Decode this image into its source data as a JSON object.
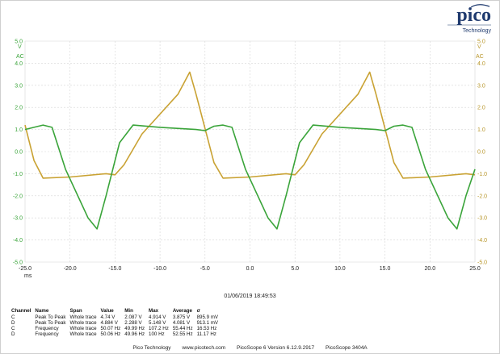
{
  "logo": {
    "wordmark": "pico",
    "sub": "Technology"
  },
  "left_axis": {
    "units": [
      "V",
      "AC"
    ],
    "ticks": [
      "5.0",
      "4.0",
      "3.0",
      "2.0",
      "1.0",
      "0.0",
      "-1.0",
      "-2.0",
      "-3.0",
      "-4.0",
      "-5.0"
    ]
  },
  "right_axis": {
    "units": [
      "V",
      "AC"
    ],
    "ticks": [
      "5.0",
      "4.0",
      "3.0",
      "2.0",
      "1.0",
      "0.0",
      "-1.0",
      "-2.0",
      "-3.0",
      "-4.0",
      "-5.0"
    ]
  },
  "x_axis": {
    "ticks": [
      "-25.0",
      "-20.0",
      "-15.0",
      "-10.0",
      "-5.0",
      "0.0",
      "5.0",
      "10.0",
      "15.0",
      "20.0",
      "25.0"
    ],
    "units": "ms"
  },
  "colors": {
    "channel_c": "#3aa43a",
    "channel_d": "#c9a233",
    "grid": "#d6d6d6"
  },
  "timestamp": "01/06/2019 18:49:53",
  "measurements": {
    "headers": [
      "Channel",
      "Name",
      "Span",
      "Value",
      "Min",
      "Max",
      "Average",
      "σ"
    ],
    "rows": [
      [
        "C",
        "Peak To Peak",
        "Whole trace",
        "4.74 V",
        "2.087 V",
        "4.914 V",
        "3.875 V",
        "895.9 mV"
      ],
      [
        "D",
        "Peak To Peak",
        "Whole trace",
        "4.884 V",
        "2.288 V",
        "5.148 V",
        "4.081 V",
        "913.1 mV"
      ],
      [
        "C",
        "Frequency",
        "Whole trace",
        "50.07 Hz",
        "49.99 Hz",
        "107.2 Hz",
        "55.44 Hz",
        "16.53 Hz"
      ],
      [
        "D",
        "Frequency",
        "Whole trace",
        "50.06 Hz",
        "49.96 Hz",
        "100 Hz",
        "52.55 Hz",
        "11.17 Hz"
      ]
    ]
  },
  "footer": {
    "company": "Pico Technology",
    "website": "www.picotech.com",
    "version": "PicoScope 6 Version 6.12.9.2917",
    "device": "PicoScope 3404A"
  },
  "traces": {
    "channel_c": [
      [
        -25,
        1.0
      ],
      [
        -24,
        1.1
      ],
      [
        -23,
        1.2
      ],
      [
        -22,
        1.1
      ],
      [
        -20.5,
        -0.8
      ],
      [
        -18,
        -3.0
      ],
      [
        -17,
        -3.5
      ],
      [
        -16,
        -2.0
      ],
      [
        -14.5,
        0.4
      ],
      [
        -13,
        1.2
      ],
      [
        -10,
        1.1
      ],
      [
        -6,
        1.0
      ],
      [
        -5,
        0.95
      ],
      [
        -4,
        1.15
      ],
      [
        -3,
        1.2
      ],
      [
        -2,
        1.1
      ],
      [
        -0.5,
        -0.8
      ],
      [
        2,
        -3.0
      ],
      [
        3,
        -3.5
      ],
      [
        4,
        -2.0
      ],
      [
        5.5,
        0.4
      ],
      [
        7,
        1.2
      ],
      [
        10,
        1.1
      ],
      [
        14,
        1.0
      ],
      [
        15,
        0.95
      ],
      [
        16,
        1.15
      ],
      [
        17,
        1.2
      ],
      [
        18,
        1.1
      ],
      [
        19.5,
        -0.8
      ],
      [
        22,
        -3.0
      ],
      [
        23,
        -3.5
      ],
      [
        24,
        -2.0
      ],
      [
        25,
        -0.8
      ]
    ],
    "channel_d": [
      [
        -25,
        1.2
      ],
      [
        -24,
        -0.4
      ],
      [
        -23,
        -1.2
      ],
      [
        -20,
        -1.15
      ],
      [
        -16,
        -1.0
      ],
      [
        -15,
        -1.05
      ],
      [
        -14,
        -0.6
      ],
      [
        -12,
        0.8
      ],
      [
        -8,
        2.6
      ],
      [
        -6.7,
        3.6
      ],
      [
        -6,
        2.6
      ],
      [
        -4,
        -0.5
      ],
      [
        -3,
        -1.2
      ],
      [
        0,
        -1.15
      ],
      [
        4,
        -1.0
      ],
      [
        5,
        -1.05
      ],
      [
        6,
        -0.6
      ],
      [
        8,
        0.8
      ],
      [
        12,
        2.6
      ],
      [
        13.3,
        3.6
      ],
      [
        14,
        2.6
      ],
      [
        16,
        -0.5
      ],
      [
        17,
        -1.2
      ],
      [
        20,
        -1.15
      ],
      [
        24,
        -1.0
      ],
      [
        25,
        -1.05
      ]
    ]
  }
}
